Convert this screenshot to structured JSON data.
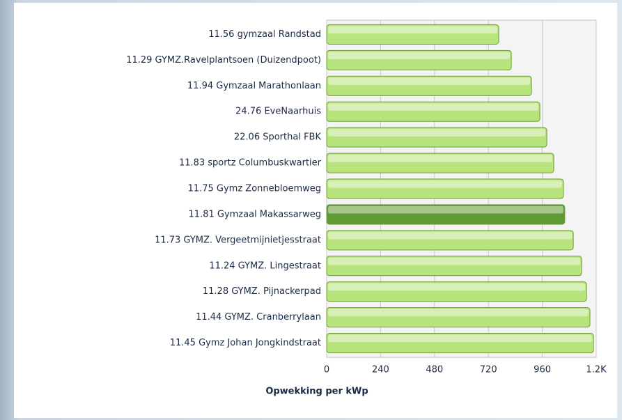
{
  "chart_data": {
    "type": "hbar",
    "x_label": "Opwekking per kWp",
    "categories": [
      "11.56 gymzaal Randstad",
      "11.29 GYMZ.Ravelplantsoen (Duizendpoot)",
      "11.94 Gymzaal Marathonlaan",
      "24.76 EveNaarhuis",
      "22.06 Sporthal FBK",
      "11.83 sportz Columbuskwartier",
      "11.75 Gymz  Zonnebloemweg",
      "11.81 Gymzaal Makassarweg",
      "11.73 GYMZ. Vergeetmijnietjesstraat",
      "11.24 GYMZ. Lingestraat",
      "11.28 GYMZ. Pijnackerpad",
      "11.44 GYMZ. Cranberrylaan",
      "11.45 Gymz  Johan Jongkindstraat"
    ],
    "values": [
      766,
      822,
      912,
      949,
      980,
      1011,
      1054,
      1060,
      1098,
      1135,
      1157,
      1172,
      1188
    ],
    "colors": [
      "#b8e47e",
      "#b8e47e",
      "#b8e47e",
      "#b8e47e",
      "#b8e47e",
      "#b8e47e",
      "#b8e47e",
      "#5f9a33",
      "#b8e47e",
      "#b8e47e",
      "#b8e47e",
      "#b8e47e",
      "#b8e47e"
    ],
    "xlim": [
      0,
      1200
    ],
    "xticks": [
      0,
      240,
      480,
      720,
      960,
      {
        "value": 1200,
        "label": "1.2K"
      }
    ],
    "grid": true
  }
}
